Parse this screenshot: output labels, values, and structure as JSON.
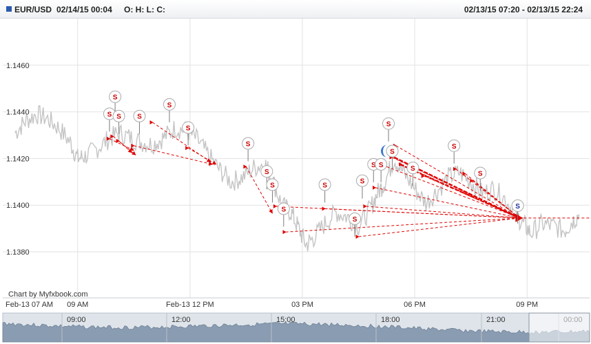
{
  "header": {
    "symbol": "EUR/USD",
    "datetime": "02/14/15 00:04",
    "ohlc_label": "O: H: L: C:",
    "range": "02/13/15 07:20 - 02/13/15 22:24"
  },
  "colors": {
    "price_line": "#c4c4c4",
    "grid": "#e2e2e2",
    "trade_arrow": "#e00000",
    "sell_marker_text": "#cc0000",
    "buy_marker_text": "#1a2f9a",
    "navigator_fill": "#8a9cb2",
    "navigator_bg": "#dfe4ea"
  },
  "chart_data": {
    "type": "line",
    "symbol": "EUR/USD",
    "y_ticks": [
      "1.1460",
      "1.1440",
      "1.1420",
      "1.1400",
      "1.1380"
    ],
    "ylim": [
      1.1375,
      1.148
    ],
    "x_tick_labels": [
      "Feb-13 07 AM",
      "09 AM",
      "Feb-13 12 PM",
      "03 PM",
      "06 PM",
      "09 PM"
    ],
    "grid": true,
    "watermark": "Chart by Myfxbook.com",
    "series": [
      {
        "values": [
          {
            "t": 7.33,
            "price": 1.1431
          },
          {
            "t": 7.6,
            "price": 1.1436
          },
          {
            "t": 7.9,
            "price": 1.1439
          },
          {
            "t": 8.2,
            "price": 1.1437
          },
          {
            "t": 8.5,
            "price": 1.1433
          },
          {
            "t": 8.8,
            "price": 1.1427
          },
          {
            "t": 9.0,
            "price": 1.142
          },
          {
            "t": 9.2,
            "price": 1.1421
          },
          {
            "t": 9.5,
            "price": 1.1424
          },
          {
            "t": 9.8,
            "price": 1.1428
          },
          {
            "t": 10.1,
            "price": 1.1431
          },
          {
            "t": 10.4,
            "price": 1.1429
          },
          {
            "t": 10.7,
            "price": 1.1427
          },
          {
            "t": 11.0,
            "price": 1.1426
          },
          {
            "t": 11.3,
            "price": 1.1429
          },
          {
            "t": 11.6,
            "price": 1.1433
          },
          {
            "t": 11.9,
            "price": 1.1432
          },
          {
            "t": 12.2,
            "price": 1.1428
          },
          {
            "t": 12.5,
            "price": 1.1421
          },
          {
            "t": 12.8,
            "price": 1.1415
          },
          {
            "t": 13.1,
            "price": 1.141
          },
          {
            "t": 13.4,
            "price": 1.1412
          },
          {
            "t": 13.7,
            "price": 1.1416
          },
          {
            "t": 14.0,
            "price": 1.1418
          },
          {
            "t": 14.2,
            "price": 1.1411
          },
          {
            "t": 14.45,
            "price": 1.14
          },
          {
            "t": 14.7,
            "price": 1.1397
          },
          {
            "t": 14.9,
            "price": 1.139
          },
          {
            "t": 15.1,
            "price": 1.1383
          },
          {
            "t": 15.3,
            "price": 1.1386
          },
          {
            "t": 15.6,
            "price": 1.1392
          },
          {
            "t": 15.9,
            "price": 1.1397
          },
          {
            "t": 16.2,
            "price": 1.1395
          },
          {
            "t": 16.5,
            "price": 1.1391
          },
          {
            "t": 16.8,
            "price": 1.1398
          },
          {
            "t": 17.0,
            "price": 1.1405
          },
          {
            "t": 17.2,
            "price": 1.141
          },
          {
            "t": 17.45,
            "price": 1.142
          },
          {
            "t": 17.7,
            "price": 1.1414
          },
          {
            "t": 18.0,
            "price": 1.1407
          },
          {
            "t": 18.3,
            "price": 1.1401
          },
          {
            "t": 18.6,
            "price": 1.1406
          },
          {
            "t": 18.9,
            "price": 1.1412
          },
          {
            "t": 19.2,
            "price": 1.1414
          },
          {
            "t": 19.5,
            "price": 1.141
          },
          {
            "t": 19.8,
            "price": 1.1405
          },
          {
            "t": 20.1,
            "price": 1.1407
          },
          {
            "t": 20.4,
            "price": 1.1403
          },
          {
            "t": 20.7,
            "price": 1.1396
          },
          {
            "t": 20.9,
            "price": 1.1392
          },
          {
            "t": 21.1,
            "price": 1.1388
          },
          {
            "t": 21.4,
            "price": 1.1392
          },
          {
            "t": 21.7,
            "price": 1.1391
          },
          {
            "t": 22.0,
            "price": 1.1389
          },
          {
            "t": 22.2,
            "price": 1.1393
          },
          {
            "t": 22.4,
            "price": 1.1396
          }
        ]
      }
    ],
    "trades": [
      {
        "type": "sell",
        "open_t": 9.85,
        "open_p": 1.14285,
        "close_t": 10.5,
        "close_p": 1.14235
      },
      {
        "type": "sell",
        "open_t": 9.95,
        "open_p": 1.14295,
        "close_t": 10.55,
        "close_p": 1.14215
      },
      {
        "type": "sell",
        "open_t": 10.1,
        "open_p": 1.14275,
        "close_t": 10.45,
        "close_p": 1.14225
      },
      {
        "type": "sell",
        "open_t": 10.5,
        "open_p": 1.14255,
        "close_t": 12.6,
        "close_p": 1.14175
      },
      {
        "type": "sell",
        "open_t": 11.0,
        "open_p": 1.14355,
        "close_t": 12.55,
        "close_p": 1.14185
      },
      {
        "type": "sell",
        "open_t": 11.95,
        "open_p": 1.14245,
        "close_t": 12.7,
        "close_p": 1.14175
      },
      {
        "type": "sell",
        "open_t": 13.5,
        "open_p": 1.14165,
        "close_t": 14.2,
        "close_p": 1.13965
      },
      {
        "type": "sell",
        "open_t": 14.3,
        "open_p": 1.13995,
        "close_t": 20.8,
        "close_p": 1.13945
      },
      {
        "type": "sell",
        "open_t": 14.55,
        "open_p": 1.13885,
        "close_t": 20.8,
        "close_p": 1.13945
      },
      {
        "type": "sell",
        "open_t": 15.6,
        "open_p": 1.13985,
        "close_t": 20.8,
        "close_p": 1.13945
      },
      {
        "type": "sell",
        "open_t": 16.5,
        "open_p": 1.13865,
        "close_t": 20.8,
        "close_p": 1.13945
      },
      {
        "type": "sell",
        "open_t": 16.7,
        "open_p": 1.13995,
        "close_t": 20.8,
        "close_p": 1.13945
      },
      {
        "type": "sell",
        "open_t": 16.95,
        "open_p": 1.14075,
        "close_t": 20.8,
        "close_p": 1.13945
      },
      {
        "type": "sell",
        "open_t": 17.25,
        "open_p": 1.14165,
        "close_t": 20.8,
        "close_p": 1.13945
      },
      {
        "type": "sell",
        "open_t": 17.4,
        "open_p": 1.14205,
        "close_t": 20.8,
        "close_p": 1.13945
      },
      {
        "type": "sell",
        "open_t": 17.5,
        "open_p": 1.14255,
        "close_t": 20.8,
        "close_p": 1.13945
      },
      {
        "type": "sell",
        "open_t": 17.65,
        "open_p": 1.14175,
        "close_t": 20.8,
        "close_p": 1.13945
      },
      {
        "type": "sell",
        "open_t": 18.25,
        "open_p": 1.14125,
        "close_t": 20.8,
        "close_p": 1.13945
      },
      {
        "type": "sell",
        "open_t": 19.1,
        "open_p": 1.14155,
        "close_t": 20.8,
        "close_p": 1.13945
      },
      {
        "type": "sell",
        "open_t": 19.35,
        "open_p": 1.14135,
        "close_t": 20.8,
        "close_p": 1.13945
      },
      {
        "type": "sell",
        "open_t": 19.55,
        "open_p": 1.14105,
        "close_t": 20.8,
        "close_p": 1.13945
      }
    ],
    "markers": [
      {
        "label": "S",
        "type": "sell",
        "t": 9.85,
        "p": 1.14392
      },
      {
        "label": "S",
        "type": "sell",
        "t": 10.0,
        "p": 1.14465
      },
      {
        "label": "S",
        "type": "sell",
        "t": 10.1,
        "p": 1.14382
      },
      {
        "label": "S",
        "type": "sell",
        "t": 10.65,
        "p": 1.14382
      },
      {
        "label": "S",
        "type": "sell",
        "t": 11.45,
        "p": 1.14432
      },
      {
        "label": "S",
        "type": "sell",
        "t": 11.95,
        "p": 1.14333
      },
      {
        "label": "S",
        "type": "sell",
        "t": 13.55,
        "p": 1.14265
      },
      {
        "label": "S",
        "type": "sell",
        "t": 14.05,
        "p": 1.14145
      },
      {
        "label": "S",
        "type": "sell",
        "t": 14.2,
        "p": 1.14088
      },
      {
        "label": "S",
        "type": "sell",
        "t": 14.5,
        "p": 1.13985
      },
      {
        "label": "S",
        "type": "sell",
        "t": 15.6,
        "p": 1.14088
      },
      {
        "label": "S",
        "type": "sell",
        "t": 16.4,
        "p": 1.13942
      },
      {
        "label": "S",
        "type": "sell",
        "t": 16.6,
        "p": 1.14105
      },
      {
        "label": "S",
        "type": "sell",
        "t": 16.9,
        "p": 1.14175
      },
      {
        "label": "S",
        "type": "sell",
        "t": 17.1,
        "p": 1.14175
      },
      {
        "label": "S",
        "type": "sell",
        "t": 17.3,
        "p": 1.1435
      },
      {
        "label": "S",
        "type": "sell",
        "t": 17.4,
        "p": 1.14232
      },
      {
        "label": "S",
        "type": "sell",
        "t": 17.95,
        "p": 1.1416
      },
      {
        "label": "S",
        "type": "sell",
        "t": 19.05,
        "p": 1.14255
      },
      {
        "label": "S",
        "type": "sell",
        "t": 19.75,
        "p": 1.14138
      },
      {
        "label": "S",
        "type": "buy",
        "t": 20.75,
        "p": 1.13998
      }
    ],
    "navigator": {
      "time_labels": [
        "09:00",
        "12:00",
        "15:00",
        "18:00",
        "21:00",
        "00:00"
      ],
      "selection_range": "07:20 - 22:24"
    }
  }
}
